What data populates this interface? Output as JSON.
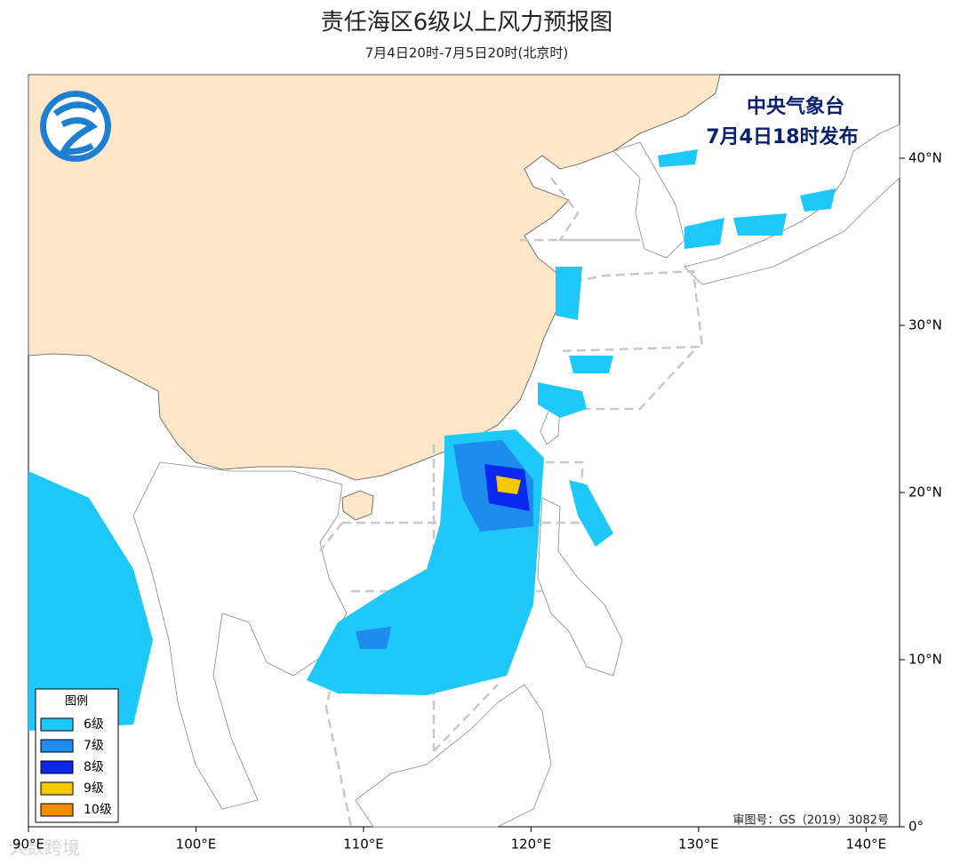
{
  "header": {
    "title": "责任海区6级以上风力预报图",
    "subtitle": "7月4日20时-7月5日20时(北京时)"
  },
  "map": {
    "issuer": "中央气象台",
    "issued": "7月4日18时发布",
    "approval": "审图号：GS（2019）3082号",
    "lon_range": [
      90,
      142
    ],
    "lat_range": [
      0,
      45
    ],
    "lon_ticks": [
      {
        "value": 90,
        "label": "90°E"
      },
      {
        "value": 100,
        "label": "100°E"
      },
      {
        "value": 110,
        "label": "110°E"
      },
      {
        "value": 120,
        "label": "120°E"
      },
      {
        "value": 130,
        "label": "130°E"
      },
      {
        "value": 140,
        "label": "140°E"
      }
    ],
    "lat_ticks": [
      {
        "value": 0,
        "label": "0°"
      },
      {
        "value": 10,
        "label": "10°N"
      },
      {
        "value": 20,
        "label": "20°N"
      },
      {
        "value": 30,
        "label": "30°N"
      },
      {
        "value": 40,
        "label": "40°N"
      }
    ]
  },
  "legend": {
    "title": "图例",
    "items": [
      {
        "label": "6级",
        "color": "#1ec8fa"
      },
      {
        "label": "7级",
        "color": "#1e8ced"
      },
      {
        "label": "8级",
        "color": "#0a28f0"
      },
      {
        "label": "9级",
        "color": "#f5c800"
      },
      {
        "label": "10级",
        "color": "#f08c00"
      }
    ]
  },
  "watermark": "大数跨境"
}
